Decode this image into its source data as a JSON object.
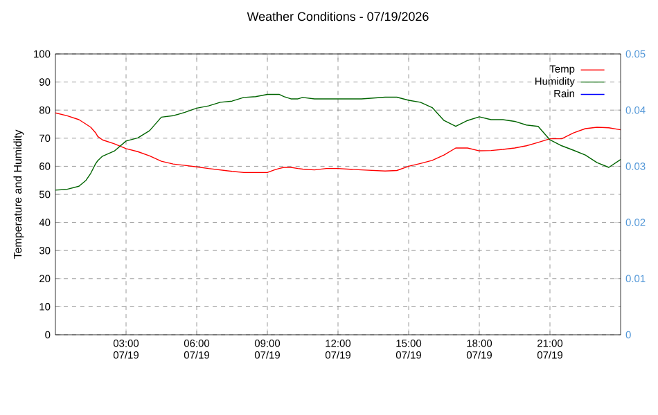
{
  "chart_data": {
    "type": "line",
    "title": "Weather Conditions - 07/19/2026",
    "ylabel": "Temperature and Humidity",
    "x": [
      "2026-07-19T00:00",
      "2026-07-19T00:30",
      "2026-07-19T01:00",
      "2026-07-19T01:18",
      "2026-07-19T01:30",
      "2026-07-19T01:42",
      "2026-07-19T01:48",
      "2026-07-19T02:00",
      "2026-07-19T02:30",
      "2026-07-19T03:00",
      "2026-07-19T03:30",
      "2026-07-19T04:00",
      "2026-07-19T04:30",
      "2026-07-19T05:00",
      "2026-07-19T05:30",
      "2026-07-19T06:00",
      "2026-07-19T06:30",
      "2026-07-19T07:00",
      "2026-07-19T07:30",
      "2026-07-19T08:00",
      "2026-07-19T08:30",
      "2026-07-19T09:00",
      "2026-07-19T09:18",
      "2026-07-19T09:30",
      "2026-07-19T09:42",
      "2026-07-19T10:00",
      "2026-07-19T10:18",
      "2026-07-19T10:30",
      "2026-07-19T11:00",
      "2026-07-19T11:30",
      "2026-07-19T12:00",
      "2026-07-19T13:00",
      "2026-07-19T14:00",
      "2026-07-19T14:30",
      "2026-07-19T15:00",
      "2026-07-19T15:30",
      "2026-07-19T16:00",
      "2026-07-19T16:30",
      "2026-07-19T17:00",
      "2026-07-19T17:30",
      "2026-07-19T18:00",
      "2026-07-19T18:30",
      "2026-07-19T19:00",
      "2026-07-19T19:30",
      "2026-07-19T20:00",
      "2026-07-19T20:30",
      "2026-07-19T21:00",
      "2026-07-19T21:30",
      "2026-07-19T22:00",
      "2026-07-19T22:30",
      "2026-07-19T23:00",
      "2026-07-19T23:30",
      "2026-07-20T00:00"
    ],
    "series": [
      {
        "name": "Temp",
        "color": "#ff0000",
        "values": [
          79,
          78,
          76.6,
          75,
          73.9,
          72,
          70.6,
          69.4,
          68,
          66.3,
          65.2,
          63.7,
          61.8,
          60.8,
          60.3,
          59.8,
          59.2,
          58.7,
          58.2,
          57.8,
          57.8,
          57.8,
          58.7,
          59.2,
          59.6,
          59.6,
          59.2,
          59,
          58.7,
          59.2,
          59.2,
          58.7,
          58.3,
          58.5,
          60,
          61,
          62.1,
          64,
          66.5,
          66.5,
          65.5,
          65.6,
          66,
          66.5,
          67.3,
          68.5,
          69.8,
          69.8,
          71.9,
          73.4,
          73.9,
          73.7,
          73
        ]
      },
      {
        "name": "Humidity",
        "color": "#006400",
        "values": [
          51.5,
          51.8,
          52.9,
          55,
          57.5,
          60.8,
          62,
          63.6,
          65.4,
          69,
          70.1,
          72.7,
          77.5,
          78,
          79.2,
          80.7,
          81.5,
          82.8,
          83.2,
          84.5,
          84.8,
          85.6,
          85.6,
          85.6,
          84.8,
          84,
          84,
          84.5,
          84,
          84,
          84,
          84,
          84.6,
          84.6,
          83.5,
          82.8,
          80.9,
          76.3,
          74.2,
          76.3,
          77.6,
          76.6,
          76.6,
          76,
          74.7,
          74.2,
          69.4,
          67.3,
          65.7,
          64,
          61.3,
          59.6,
          62.4
        ]
      },
      {
        "name": "Rain",
        "color": "#0000ff",
        "axis": "y2",
        "values": [
          null,
          null,
          null,
          null,
          null,
          null,
          null,
          null,
          null,
          null,
          null,
          null,
          null,
          null,
          null,
          null,
          null,
          null,
          null,
          null,
          null,
          null,
          null,
          null,
          null,
          null,
          null,
          null,
          null,
          null,
          null,
          null,
          null,
          null,
          null,
          null,
          null,
          null,
          null,
          null,
          null,
          null,
          null,
          null,
          null,
          null,
          null,
          null,
          null,
          null,
          null,
          null,
          null
        ]
      }
    ],
    "xlim": [
      "2026-07-19T00:00",
      "2026-07-20T00:00"
    ],
    "xticks": [
      {
        "value": "2026-07-19T03:00",
        "label": "03:00 07/19"
      },
      {
        "value": "2026-07-19T06:00",
        "label": "06:00 07/19"
      },
      {
        "value": "2026-07-19T09:00",
        "label": "09:00 07/19"
      },
      {
        "value": "2026-07-19T12:00",
        "label": "12:00 07/19"
      },
      {
        "value": "2026-07-19T15:00",
        "label": "15:00 07/19"
      },
      {
        "value": "2026-07-19T18:00",
        "label": "18:00 07/19"
      },
      {
        "value": "2026-07-19T21:00",
        "label": "21:00 07/19"
      }
    ],
    "ylim": [
      0,
      100
    ],
    "yticks": [
      0,
      10,
      20,
      30,
      40,
      50,
      60,
      70,
      80,
      90,
      100
    ],
    "y2lim": [
      0,
      0.05
    ],
    "y2ticks": [
      0,
      0.01,
      0.02,
      0.03,
      0.04,
      0.05
    ],
    "grid": true,
    "legend": "top right",
    "marker": "none",
    "line_style": "solid"
  }
}
